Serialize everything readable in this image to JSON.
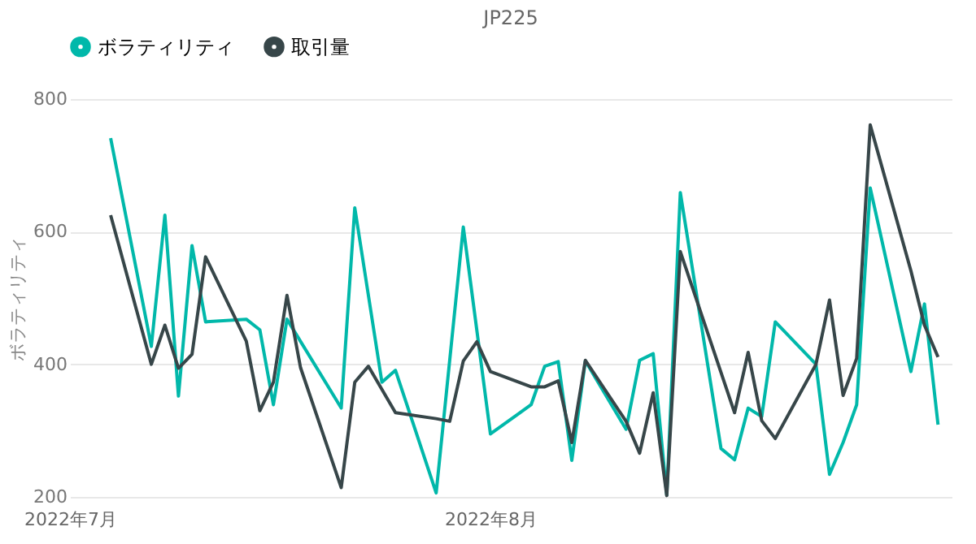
{
  "chart_data": {
    "type": "line",
    "title": "JP225",
    "ylabel": "ボラティリティ",
    "xlim": [
      "2022-07-01",
      "2022-09-04"
    ],
    "xticks": [
      {
        "value": "2022-07-01",
        "label": "2022年7月"
      },
      {
        "value": "2022-08-01",
        "label": "2022年8月"
      }
    ],
    "ylim": [
      200,
      800
    ],
    "yticks": [
      200,
      400,
      600,
      800
    ],
    "grid": "y",
    "legend": "top",
    "series": [
      {
        "name": "ボラティリティ",
        "color": "#01b8aa",
        "x": [
          "2022-07-04",
          "2022-07-07",
          "2022-07-08",
          "2022-07-09",
          "2022-07-10",
          "2022-07-11",
          "2022-07-14",
          "2022-07-15",
          "2022-07-16",
          "2022-07-17",
          "2022-07-21",
          "2022-07-22",
          "2022-07-24",
          "2022-07-25",
          "2022-07-28",
          "2022-07-30",
          "2022-08-01",
          "2022-08-04",
          "2022-08-05",
          "2022-08-06",
          "2022-08-07",
          "2022-08-08",
          "2022-08-11",
          "2022-08-12",
          "2022-08-13",
          "2022-08-14",
          "2022-08-15",
          "2022-08-18",
          "2022-08-19",
          "2022-08-20",
          "2022-08-21",
          "2022-08-22",
          "2022-08-25",
          "2022-08-26",
          "2022-08-27",
          "2022-08-28",
          "2022-08-29",
          "2022-09-01",
          "2022-09-02",
          "2022-09-03"
        ],
        "values": [
          741,
          427,
          625,
          352,
          579,
          464,
          468,
          452,
          339,
          468,
          334,
          636,
          373,
          391,
          206,
          607,
          295,
          339,
          397,
          404,
          255,
          405,
          302,
          406,
          416,
          203,
          659,
          273,
          256,
          334,
          321,
          464,
          400,
          234,
          282,
          339,
          666,
          389,
          491,
          309
        ]
      },
      {
        "name": "取引量",
        "color": "#374649",
        "x": [
          "2022-07-04",
          "2022-07-07",
          "2022-07-08",
          "2022-07-09",
          "2022-07-10",
          "2022-07-11",
          "2022-07-14",
          "2022-07-15",
          "2022-07-16",
          "2022-07-17",
          "2022-07-18",
          "2022-07-21",
          "2022-07-22",
          "2022-07-23",
          "2022-07-25",
          "2022-07-28",
          "2022-07-29",
          "2022-07-30",
          "2022-07-31",
          "2022-08-01",
          "2022-08-04",
          "2022-08-05",
          "2022-08-06",
          "2022-08-07",
          "2022-08-08",
          "2022-08-11",
          "2022-08-12",
          "2022-08-13",
          "2022-08-14",
          "2022-08-15",
          "2022-08-19",
          "2022-08-20",
          "2022-08-21",
          "2022-08-22",
          "2022-08-25",
          "2022-08-26",
          "2022-08-27",
          "2022-08-28",
          "2022-08-29",
          "2022-09-01",
          "2022-09-02",
          "2022-09-03"
        ],
        "values": [
          625,
          400,
          459,
          394,
          415,
          562,
          435,
          330,
          373,
          504,
          395,
          214,
          373,
          397,
          327,
          318,
          314,
          405,
          434,
          389,
          366,
          366,
          375,
          282,
          406,
          314,
          266,
          357,
          202,
          570,
          327,
          418,
          315,
          288,
          400,
          497,
          353,
          409,
          761,
          541,
          459,
          411
        ]
      }
    ]
  }
}
